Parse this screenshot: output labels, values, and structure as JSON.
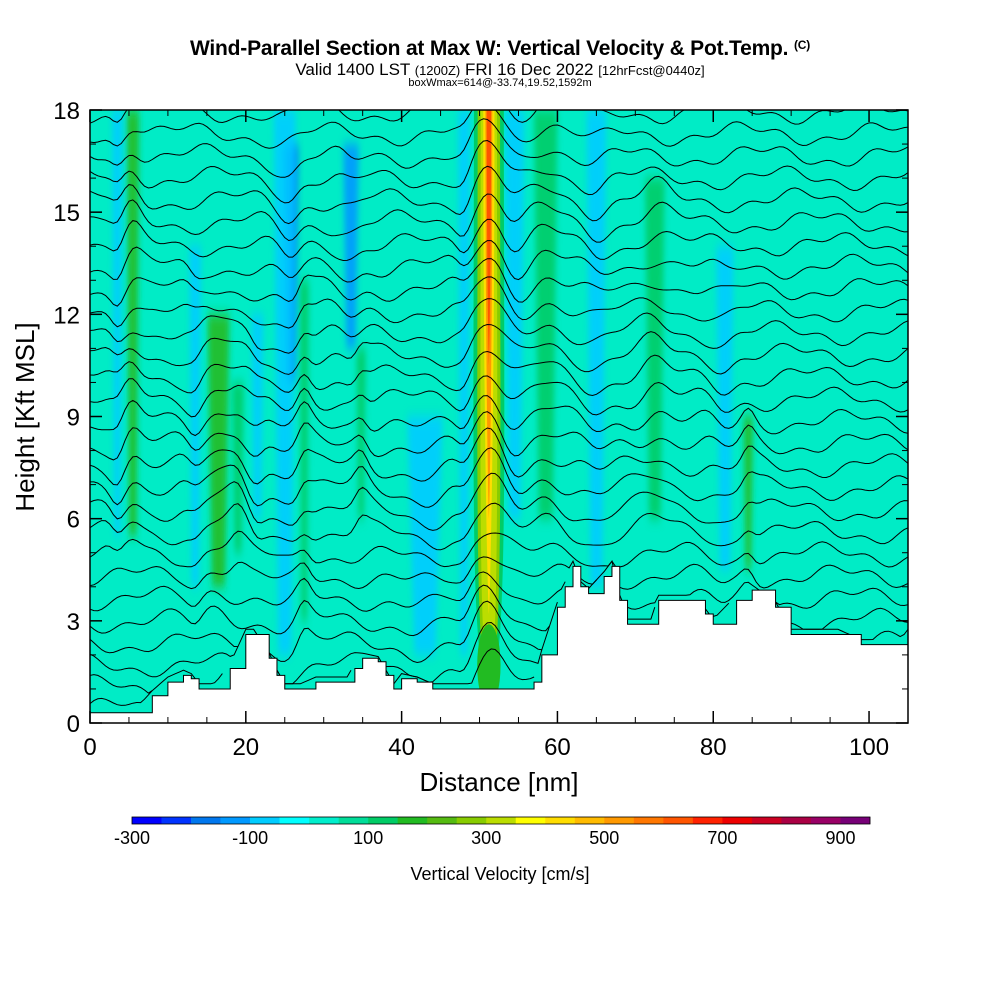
{
  "chart_data": {
    "type": "heatmap",
    "title": "Wind-Parallel Section at Max W: Vertical Velocity & Pot.Temp.",
    "title_mark": "(C)",
    "subtitle_main": "Valid 1400 LST",
    "subtitle_utc": "(1200Z)",
    "subtitle_date": "FRI 16 Dec 2022",
    "subtitle_fcst": "[12hrFcst@0440z]",
    "box_info": "boxWmax=614@-33.74,19.52,1592m",
    "xlabel": "Distance [nm]",
    "ylabel": "Height [Kft MSL]",
    "xlim": [
      0,
      105
    ],
    "ylim": [
      0,
      18
    ],
    "x_ticks": [
      "0",
      "20",
      "40",
      "60",
      "80",
      "100"
    ],
    "y_ticks": [
      "0",
      "3",
      "6",
      "9",
      "12",
      "15",
      "18"
    ],
    "colorbar": {
      "title": "Vertical Velocity [cm/s]",
      "tick_labels": [
        "-300",
        "-100",
        "100",
        "300",
        "500",
        "700",
        "900"
      ],
      "colors": [
        "#0000ff",
        "#0033ff",
        "#0077ee",
        "#0099ff",
        "#00ccff",
        "#00ffff",
        "#00eecc",
        "#00dd99",
        "#00cc66",
        "#22bb22",
        "#55bb11",
        "#88cc00",
        "#bbdd00",
        "#ffff00",
        "#ffdd00",
        "#ffbb00",
        "#ff9900",
        "#ff7700",
        "#ff5500",
        "#ff2200",
        "#ee0000",
        "#cc0022",
        "#aa0044",
        "#990066",
        "#770077"
      ]
    },
    "terrain": [
      [
        0,
        0.3
      ],
      [
        6,
        0.3
      ],
      [
        8,
        0.8
      ],
      [
        10,
        1.2
      ],
      [
        12,
        1.4
      ],
      [
        13,
        1.3
      ],
      [
        14,
        1.0
      ],
      [
        16,
        1.0
      ],
      [
        18,
        1.6
      ],
      [
        20,
        2.6
      ],
      [
        21,
        2.6
      ],
      [
        23,
        1.9
      ],
      [
        24,
        1.4
      ],
      [
        25,
        1.0
      ],
      [
        27,
        1.0
      ],
      [
        29,
        1.2
      ],
      [
        33,
        1.2
      ],
      [
        34,
        1.6
      ],
      [
        35,
        1.9
      ],
      [
        37,
        1.8
      ],
      [
        38,
        1.4
      ],
      [
        39,
        1.0
      ],
      [
        40,
        1.3
      ],
      [
        42,
        1.2
      ],
      [
        44,
        1.0
      ],
      [
        48,
        1.0
      ],
      [
        52,
        1.0
      ],
      [
        55,
        1.0
      ],
      [
        57,
        1.2
      ],
      [
        58,
        2.0
      ],
      [
        60,
        3.4
      ],
      [
        61,
        4.0
      ],
      [
        62,
        4.6
      ],
      [
        63,
        4.0
      ],
      [
        64,
        3.8
      ],
      [
        66,
        4.3
      ],
      [
        67,
        4.6
      ],
      [
        68,
        3.6
      ],
      [
        69,
        2.9
      ],
      [
        72,
        2.9
      ],
      [
        73,
        3.6
      ],
      [
        75,
        3.6
      ],
      [
        77,
        3.6
      ],
      [
        79,
        3.2
      ],
      [
        80,
        2.9
      ],
      [
        83,
        3.6
      ],
      [
        85,
        3.9
      ],
      [
        88,
        3.4
      ],
      [
        90,
        2.6
      ],
      [
        94,
        2.6
      ],
      [
        96,
        2.6
      ],
      [
        99,
        2.3
      ],
      [
        104,
        2.3
      ],
      [
        105,
        2.6
      ]
    ],
    "updraft_columns": [
      {
        "x": 5.5,
        "width": 1.6,
        "ymin": 5.5,
        "ymax": 18,
        "w": 150
      },
      {
        "x": 16.5,
        "width": 2.8,
        "ymin": 4.0,
        "ymax": 12,
        "w": 150
      },
      {
        "x": 19.0,
        "width": 1.5,
        "ymin": 5.0,
        "ymax": 10,
        "w": 120
      },
      {
        "x": 27.5,
        "width": 1.2,
        "ymin": 3.0,
        "ymax": 13,
        "w": 110
      },
      {
        "x": 34.8,
        "width": 1.2,
        "ymin": 6.0,
        "ymax": 11,
        "w": 100
      },
      {
        "x": 58.5,
        "width": 3.0,
        "ymin": 6.0,
        "ymax": 18,
        "w": 100
      },
      {
        "x": 72.5,
        "width": 2.5,
        "ymin": 6.0,
        "ymax": 16,
        "w": 110
      },
      {
        "x": 84.5,
        "width": 1.2,
        "ymin": 4.5,
        "ymax": 9,
        "w": 150
      }
    ],
    "downdraft_columns": [
      {
        "x": 3.5,
        "width": 1.3,
        "ymin": 5.5,
        "ymax": 18,
        "w": -60
      },
      {
        "x": 13.5,
        "width": 1.5,
        "ymin": 4.0,
        "ymax": 14,
        "w": -60
      },
      {
        "x": 21.5,
        "width": 1.5,
        "ymin": 6.0,
        "ymax": 12,
        "w": -60
      },
      {
        "x": 25.8,
        "width": 1.8,
        "ymin": 10.0,
        "ymax": 17,
        "w": -230
      },
      {
        "x": 25.0,
        "width": 2.8,
        "ymin": 2.0,
        "ymax": 18,
        "w": -80
      },
      {
        "x": 33.5,
        "width": 2.0,
        "ymin": 11.0,
        "ymax": 17,
        "w": -150
      },
      {
        "x": 43.0,
        "width": 4.5,
        "ymin": 2.0,
        "ymax": 9,
        "w": -60
      },
      {
        "x": 48.0,
        "width": 1.5,
        "ymin": 2.0,
        "ymax": 18,
        "w": -70
      },
      {
        "x": 54.5,
        "width": 2.5,
        "ymin": 6.0,
        "ymax": 18,
        "w": -60
      },
      {
        "x": 65.0,
        "width": 2.5,
        "ymin": 4.0,
        "ymax": 18,
        "w": -80
      },
      {
        "x": 81.5,
        "width": 2.2,
        "ymin": 4.5,
        "ymax": 14,
        "w": -90
      }
    ],
    "main_updraft": {
      "x": 51.2,
      "ymin": 1.0,
      "ymax": 18,
      "w_max": 600
    },
    "theta_contour_spacing_kft": 0.65
  }
}
